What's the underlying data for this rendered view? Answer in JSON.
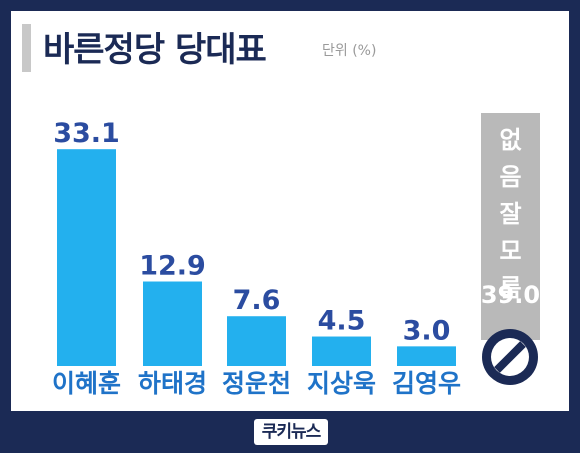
{
  "header": {
    "title": "바른정당 당대표",
    "unit": "단위 (%)"
  },
  "chart_data": {
    "type": "bar",
    "categories": [
      "이혜훈",
      "하태경",
      "정운천",
      "지상욱",
      "김영우"
    ],
    "values": [
      33.1,
      12.9,
      7.6,
      4.5,
      3.0
    ],
    "value_labels": [
      "33.1",
      "12.9",
      "7.6",
      "4.5",
      "3.0"
    ],
    "undecided": {
      "label_chars": [
        "없",
        "음",
        "잘",
        "모",
        "름"
      ],
      "value": 39.0,
      "value_label": "39.0"
    },
    "title": "바른정당 당대표",
    "ylabel": "",
    "colors": {
      "bar": "#23b0ee",
      "undecided_bar": "#b9b9b9",
      "value_text": "#2b4ca0",
      "category_text": "#1f73c8"
    }
  },
  "footer": {
    "logo_text": "쿠키뉴스"
  }
}
